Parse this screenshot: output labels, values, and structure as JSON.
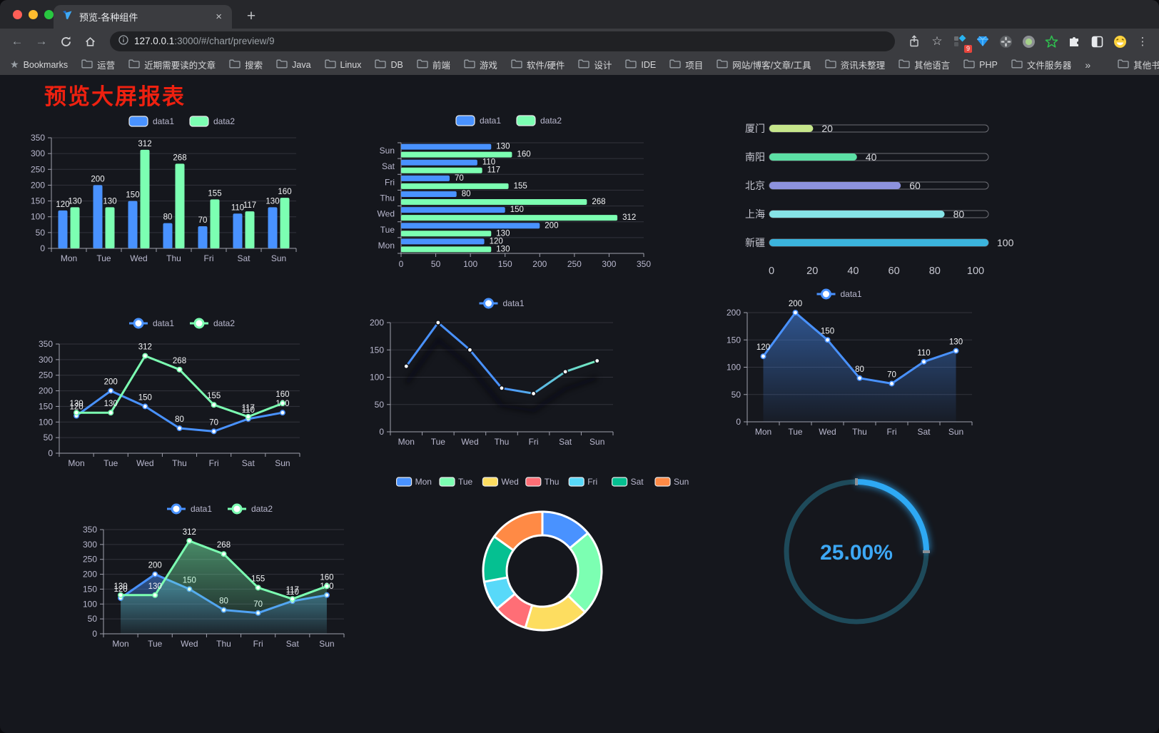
{
  "browser": {
    "tab": {
      "title": "预览-各种组件",
      "close_glyph": "×",
      "new_tab_glyph": "+"
    },
    "address": {
      "host": "127.0.0.1",
      "rest": ":3000/#/chart/preview/9"
    },
    "extension_badge": "9",
    "bookmarks_bar": {
      "bookmarks_label": "Bookmarks",
      "folders": [
        "运营",
        "近期需要读的文章",
        "搜索",
        "Java",
        "Linux",
        "DB",
        "前端",
        "游戏",
        "软件/硬件",
        "设计",
        "IDE",
        "项目",
        "网站/博客/文章/工具",
        "资讯未整理",
        "其他语言",
        "PHP",
        "文件服务器"
      ],
      "overflow_glyph": "»",
      "other_bookmarks": "其他书签"
    }
  },
  "page": {
    "title": "预览大屏报表"
  },
  "palette": {
    "series": [
      "#4992ff",
      "#7cffb2",
      "#fddd60",
      "#ff6e76",
      "#58d9f9",
      "#05c091",
      "#ff8a45"
    ],
    "axis_label": "#b9b8ce",
    "axis_line": "#9fa0ad",
    "grid_line": "#32333c",
    "data_label": "#f2f3f5",
    "page_bg": "#15171d",
    "title_color": "#ee2110"
  },
  "chart_data": [
    {
      "id": "grouped-bar",
      "type": "bar",
      "legend": [
        "data1",
        "data2"
      ],
      "categories": [
        "Mon",
        "Tue",
        "Wed",
        "Thu",
        "Fri",
        "Sat",
        "Sun"
      ],
      "series": [
        {
          "name": "data1",
          "color": "#4992ff",
          "values": [
            120,
            200,
            150,
            80,
            70,
            110,
            130
          ]
        },
        {
          "name": "data2",
          "color": "#7cffb2",
          "values": [
            130,
            130,
            312,
            268,
            155,
            117,
            160
          ]
        }
      ],
      "ylim": [
        0,
        350
      ],
      "ytick_step": 50,
      "show_labels": true
    },
    {
      "id": "horizontal-bar",
      "type": "bar-horizontal",
      "legend": [
        "data1",
        "data2"
      ],
      "categories_top_to_bottom": [
        "Sun",
        "Sat",
        "Fri",
        "Thu",
        "Wed",
        "Tue",
        "Mon"
      ],
      "series": [
        {
          "name": "data1",
          "color": "#4992ff",
          "values": [
            130,
            110,
            70,
            80,
            150,
            200,
            120
          ]
        },
        {
          "name": "data2",
          "color": "#7cffb2",
          "values": [
            160,
            117,
            155,
            268,
            312,
            130,
            130
          ]
        }
      ],
      "xlim": [
        0,
        350
      ],
      "xtick_step": 50,
      "show_labels": true
    },
    {
      "id": "progress-bars",
      "type": "progress",
      "items": [
        {
          "label": "厦门",
          "value": 20,
          "color": "#c6e68b"
        },
        {
          "label": "南阳",
          "value": 40,
          "color": "#5ce0a5"
        },
        {
          "label": "北京",
          "value": 60,
          "color": "#8d92dd"
        },
        {
          "label": "上海",
          "value": 80,
          "color": "#86e3e6"
        },
        {
          "label": "新疆",
          "value": 100,
          "color": "#3bb4dd"
        }
      ],
      "xticks": [
        0,
        20,
        40,
        60,
        80,
        100
      ],
      "xlim": [
        0,
        100
      ]
    },
    {
      "id": "multi-line",
      "type": "line",
      "legend": [
        "data1",
        "data2"
      ],
      "categories": [
        "Mon",
        "Tue",
        "Wed",
        "Thu",
        "Fri",
        "Sat",
        "Sun"
      ],
      "series": [
        {
          "name": "data1",
          "color": "#4992ff",
          "values": [
            120,
            200,
            150,
            80,
            70,
            110,
            130
          ]
        },
        {
          "name": "data2",
          "color": "#7cffb2",
          "values": [
            130,
            130,
            312,
            268,
            155,
            117,
            160
          ]
        }
      ],
      "ylim": [
        0,
        350
      ],
      "ytick_step": 50,
      "show_labels": true
    },
    {
      "id": "gradient-line",
      "type": "line",
      "legend": [
        "data1"
      ],
      "categories": [
        "Mon",
        "Tue",
        "Wed",
        "Thu",
        "Fri",
        "Sat",
        "Sun"
      ],
      "series": [
        {
          "name": "data1",
          "gradient": [
            "#4992ff",
            "#7cffb2"
          ],
          "values": [
            120,
            200,
            150,
            80,
            70,
            110,
            130
          ]
        }
      ],
      "ylim": [
        0,
        200
      ],
      "ytick_step": 50,
      "show_labels": false,
      "shadow": true
    },
    {
      "id": "area-line",
      "type": "line",
      "legend": [
        "data1"
      ],
      "categories": [
        "Mon",
        "Tue",
        "Wed",
        "Thu",
        "Fri",
        "Sat",
        "Sun"
      ],
      "series": [
        {
          "name": "data1",
          "color": "#4992ff",
          "area": true,
          "values": [
            120,
            200,
            150,
            80,
            70,
            110,
            130
          ]
        }
      ],
      "ylim": [
        0,
        200
      ],
      "ytick_step": 50,
      "show_labels": true
    },
    {
      "id": "double-area",
      "type": "line",
      "legend": [
        "data1",
        "data2"
      ],
      "categories": [
        "Mon",
        "Tue",
        "Wed",
        "Thu",
        "Fri",
        "Sat",
        "Sun"
      ],
      "series": [
        {
          "name": "data1",
          "color": "#4992ff",
          "area": true,
          "values": [
            120,
            200,
            150,
            80,
            70,
            110,
            130
          ]
        },
        {
          "name": "data2",
          "color": "#7cffb2",
          "area": true,
          "values": [
            130,
            130,
            312,
            268,
            155,
            117,
            160
          ]
        }
      ],
      "ylim": [
        0,
        350
      ],
      "ytick_step": 50,
      "show_labels": true
    },
    {
      "id": "donut",
      "type": "donut",
      "legend": [
        "Mon",
        "Tue",
        "Wed",
        "Thu",
        "Fri",
        "Sat",
        "Sun"
      ],
      "items": [
        {
          "label": "Mon",
          "value": 120,
          "color": "#4992ff"
        },
        {
          "label": "Tue",
          "value": 200,
          "color": "#7cffb2"
        },
        {
          "label": "Wed",
          "value": 150,
          "color": "#fddd60"
        },
        {
          "label": "Thu",
          "value": 80,
          "color": "#ff6e76"
        },
        {
          "label": "Fri",
          "value": 70,
          "color": "#58d9f9"
        },
        {
          "label": "Sat",
          "value": 110,
          "color": "#05c091"
        },
        {
          "label": "Sun",
          "value": 130,
          "color": "#ff8a45"
        }
      ]
    },
    {
      "id": "gauge",
      "type": "gauge",
      "value": 25,
      "display": "25.00%",
      "progress_color": "#2ea9f4",
      "track_color": "#1e4a5a",
      "text_color": "#3da8f5"
    }
  ]
}
